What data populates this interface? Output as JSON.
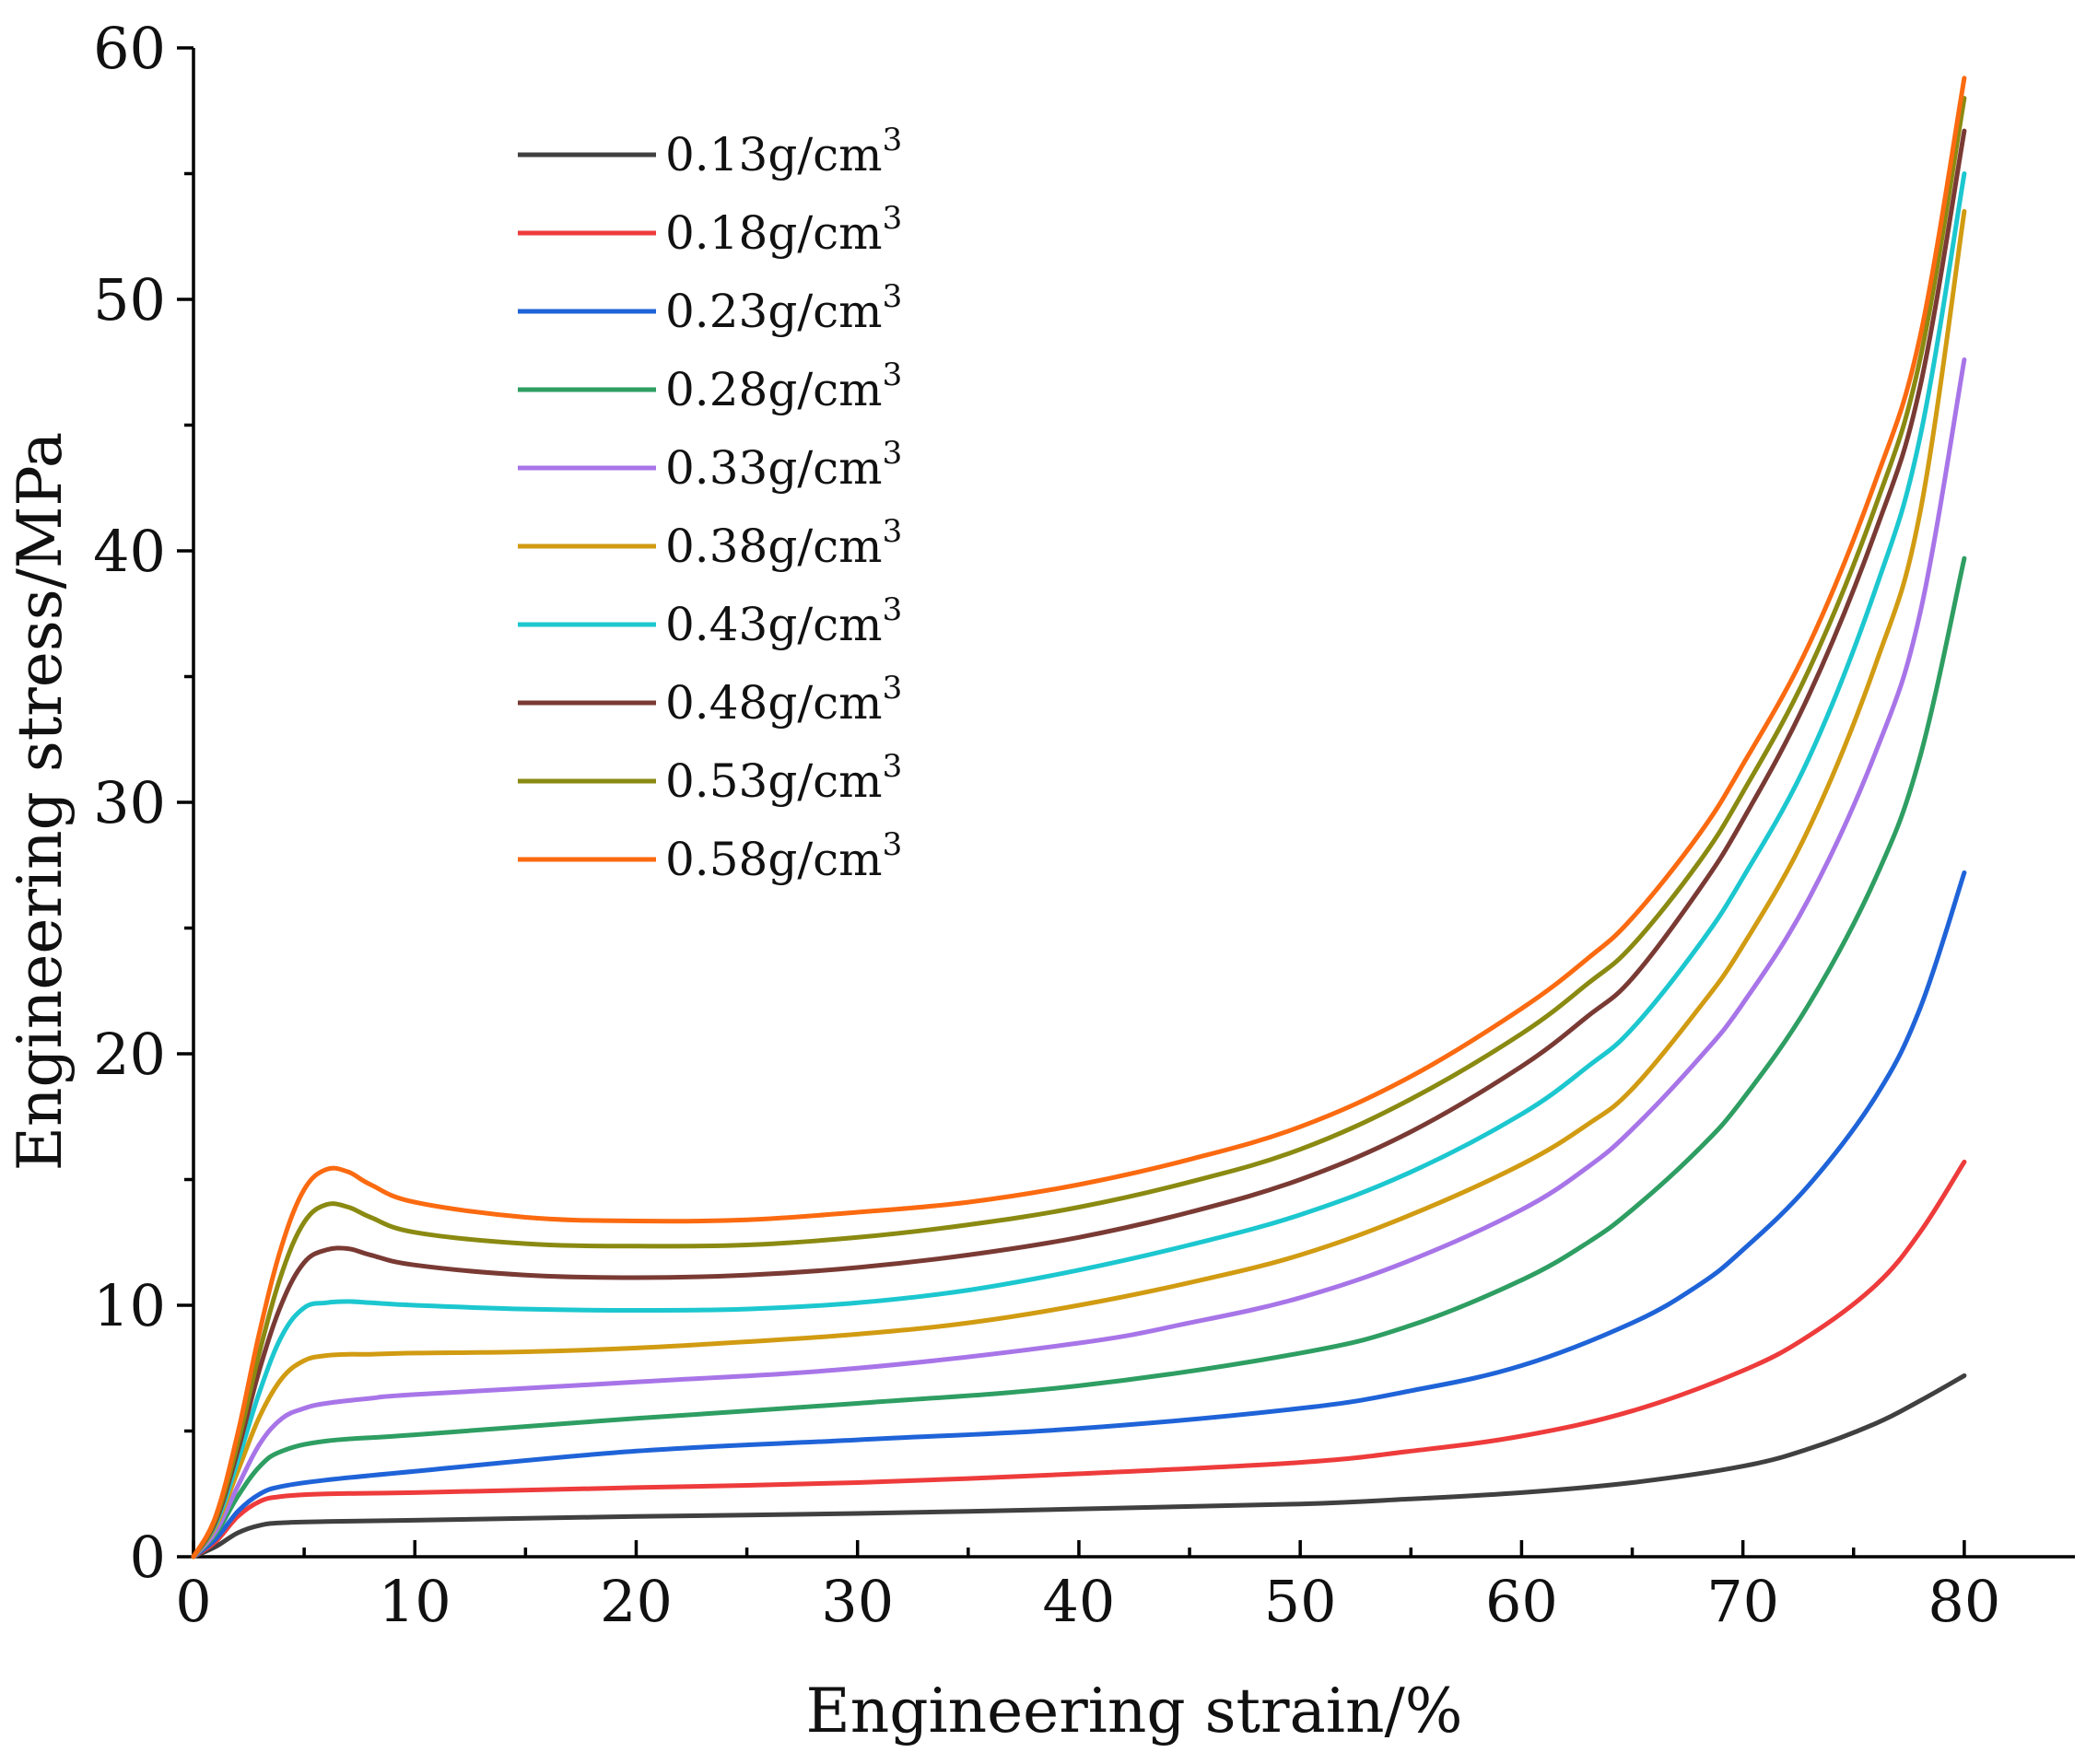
{
  "chart_data": {
    "type": "line",
    "title": "",
    "xlabel": "Engineering strain/%",
    "ylabel": "Engineering stress/MPa",
    "xlim": [
      0,
      85
    ],
    "ylim": [
      0,
      60
    ],
    "x_ticks": [
      0,
      10,
      20,
      30,
      40,
      50,
      60,
      70,
      80
    ],
    "y_ticks": [
      0,
      10,
      20,
      30,
      40,
      50,
      60
    ],
    "legend_position": "top-left",
    "grid": false,
    "series": [
      {
        "name": "0.13g/cm3",
        "label": "0.13g/cm",
        "sup": "3",
        "color": "#404040",
        "x": [
          0,
          1,
          2,
          3,
          4,
          6,
          10,
          20,
          30,
          40,
          50,
          55,
          60,
          65,
          70,
          73,
          76,
          78,
          80
        ],
        "y": [
          0,
          0.4,
          0.95,
          1.25,
          1.35,
          1.4,
          1.45,
          1.6,
          1.72,
          1.9,
          2.1,
          2.3,
          2.55,
          2.95,
          3.6,
          4.3,
          5.3,
          6.2,
          7.2
        ]
      },
      {
        "name": "0.18g/cm3",
        "label": "0.18g/cm",
        "sup": "3",
        "color": "#ee3b3b",
        "x": [
          0,
          1,
          2,
          3,
          4,
          6,
          10,
          20,
          30,
          40,
          50,
          55,
          60,
          65,
          70,
          73,
          76,
          78,
          80
        ],
        "y": [
          0,
          0.6,
          1.6,
          2.2,
          2.4,
          2.5,
          2.55,
          2.75,
          2.95,
          3.3,
          3.75,
          4.2,
          4.8,
          5.8,
          7.4,
          8.8,
          10.8,
          12.9,
          15.7
        ]
      },
      {
        "name": "0.23g/cm3",
        "label": "0.23g/cm",
        "sup": "3",
        "color": "#1f63d8",
        "x": [
          0,
          1,
          2,
          3,
          4,
          6,
          10,
          20,
          30,
          40,
          50,
          55,
          60,
          65,
          68,
          70,
          73,
          76,
          78,
          80
        ],
        "y": [
          0,
          0.7,
          1.8,
          2.5,
          2.8,
          3.05,
          3.4,
          4.2,
          4.65,
          5.1,
          5.9,
          6.6,
          7.6,
          9.3,
          10.8,
          12.2,
          14.8,
          18.3,
          21.8,
          27.2
        ]
      },
      {
        "name": "0.28g/cm3",
        "label": "0.28g/cm",
        "sup": "3",
        "color": "#2e9e62",
        "x": [
          0,
          1,
          2,
          3,
          4,
          6,
          10,
          20,
          30,
          40,
          50,
          55,
          60,
          63,
          65,
          68,
          70,
          73,
          76,
          78,
          80
        ],
        "y": [
          0,
          0.9,
          2.4,
          3.6,
          4.2,
          4.6,
          4.85,
          5.5,
          6.1,
          6.8,
          8.1,
          9.2,
          11.0,
          12.5,
          13.8,
          16.2,
          18.2,
          22.0,
          27.0,
          31.8,
          39.7
        ]
      },
      {
        "name": "0.33g/cm3",
        "label": "0.33g/cm",
        "sup": "3",
        "color": "#a875e8",
        "x": [
          0,
          1,
          2,
          3,
          4,
          5,
          6,
          8,
          10,
          20,
          30,
          40,
          45,
          50,
          55,
          60,
          63,
          65,
          68,
          70,
          73,
          76,
          78,
          80
        ],
        "y": [
          0,
          1.0,
          2.8,
          4.5,
          5.5,
          5.9,
          6.1,
          6.3,
          6.45,
          6.95,
          7.5,
          8.5,
          9.3,
          10.3,
          11.8,
          13.8,
          15.5,
          17.0,
          19.8,
          22.0,
          26.2,
          32.0,
          37.5,
          47.6
        ]
      },
      {
        "name": "0.38g/cm3",
        "label": "0.38g/cm",
        "sup": "3",
        "color": "#d19b12",
        "x": [
          0,
          1,
          2,
          3,
          4,
          5,
          6,
          7,
          8,
          10,
          15,
          20,
          25,
          30,
          35,
          40,
          45,
          50,
          55,
          60,
          63,
          65,
          68,
          70,
          73,
          76,
          78,
          80
        ],
        "y": [
          0,
          1.2,
          3.4,
          5.6,
          7.1,
          7.8,
          8.0,
          8.05,
          8.05,
          8.1,
          8.15,
          8.3,
          8.55,
          8.85,
          9.3,
          10.0,
          10.9,
          12.0,
          13.6,
          15.6,
          17.2,
          18.6,
          21.8,
          24.3,
          29.0,
          35.5,
          41.5,
          53.5
        ]
      },
      {
        "name": "0.43g/cm3",
        "label": "0.43g/cm",
        "sup": "3",
        "color": "#1cc7cf",
        "x": [
          0,
          1,
          2,
          3,
          4,
          5,
          6,
          7,
          8,
          10,
          15,
          20,
          25,
          30,
          35,
          40,
          45,
          50,
          55,
          60,
          63,
          65,
          68,
          70,
          73,
          76,
          78,
          80
        ],
        "y": [
          0,
          1.3,
          3.8,
          6.6,
          8.8,
          9.9,
          10.1,
          10.15,
          10.1,
          10.0,
          9.85,
          9.8,
          9.85,
          10.1,
          10.6,
          11.4,
          12.4,
          13.6,
          15.3,
          17.6,
          19.5,
          21.0,
          24.3,
          27.0,
          31.8,
          38.5,
          44.5,
          55.0
        ]
      },
      {
        "name": "0.48g/cm3",
        "label": "0.48g/cm",
        "sup": "3",
        "color": "#7a3a34",
        "x": [
          0,
          1,
          2,
          3,
          4,
          5,
          6,
          7,
          8,
          10,
          15,
          20,
          25,
          30,
          35,
          40,
          45,
          50,
          55,
          60,
          63,
          65,
          68,
          70,
          73,
          76,
          78,
          80
        ],
        "y": [
          0,
          1.4,
          4.2,
          7.5,
          10.1,
          11.7,
          12.2,
          12.25,
          12.0,
          11.6,
          11.2,
          11.1,
          11.2,
          11.5,
          12.0,
          12.7,
          13.7,
          15.0,
          16.9,
          19.5,
          21.5,
          23.0,
          26.5,
          29.3,
          34.3,
          40.8,
          46.5,
          56.7
        ]
      },
      {
        "name": "0.53g/cm3",
        "label": "0.53g/cm",
        "sup": "3",
        "color": "#8a8a12",
        "x": [
          0,
          1,
          2,
          3,
          4,
          5,
          6,
          7,
          8,
          10,
          15,
          20,
          25,
          30,
          35,
          40,
          45,
          50,
          55,
          60,
          63,
          65,
          68,
          70,
          73,
          76,
          78,
          80
        ],
        "y": [
          0,
          1.5,
          4.5,
          8.2,
          11.3,
          13.3,
          14.0,
          13.9,
          13.5,
          12.9,
          12.45,
          12.35,
          12.4,
          12.7,
          13.2,
          13.9,
          14.9,
          16.2,
          18.2,
          20.8,
          22.8,
          24.3,
          27.6,
          30.4,
          35.3,
          41.8,
          47.6,
          58.0
        ]
      },
      {
        "name": "0.58g/cm3",
        "label": "0.58g/cm",
        "sup": "3",
        "color": "#fb6a10",
        "x": [
          0,
          1,
          2,
          3,
          4,
          5,
          6,
          7,
          8,
          10,
          15,
          20,
          25,
          30,
          35,
          40,
          45,
          50,
          55,
          60,
          63,
          65,
          68,
          70,
          73,
          76,
          78,
          80
        ],
        "y": [
          0,
          1.6,
          4.9,
          9.0,
          12.4,
          14.6,
          15.4,
          15.3,
          14.8,
          14.1,
          13.5,
          13.35,
          13.4,
          13.7,
          14.1,
          14.8,
          15.8,
          17.1,
          19.1,
          21.8,
          23.8,
          25.4,
          28.7,
          31.5,
          36.3,
          42.8,
          48.5,
          58.8
        ]
      }
    ]
  }
}
